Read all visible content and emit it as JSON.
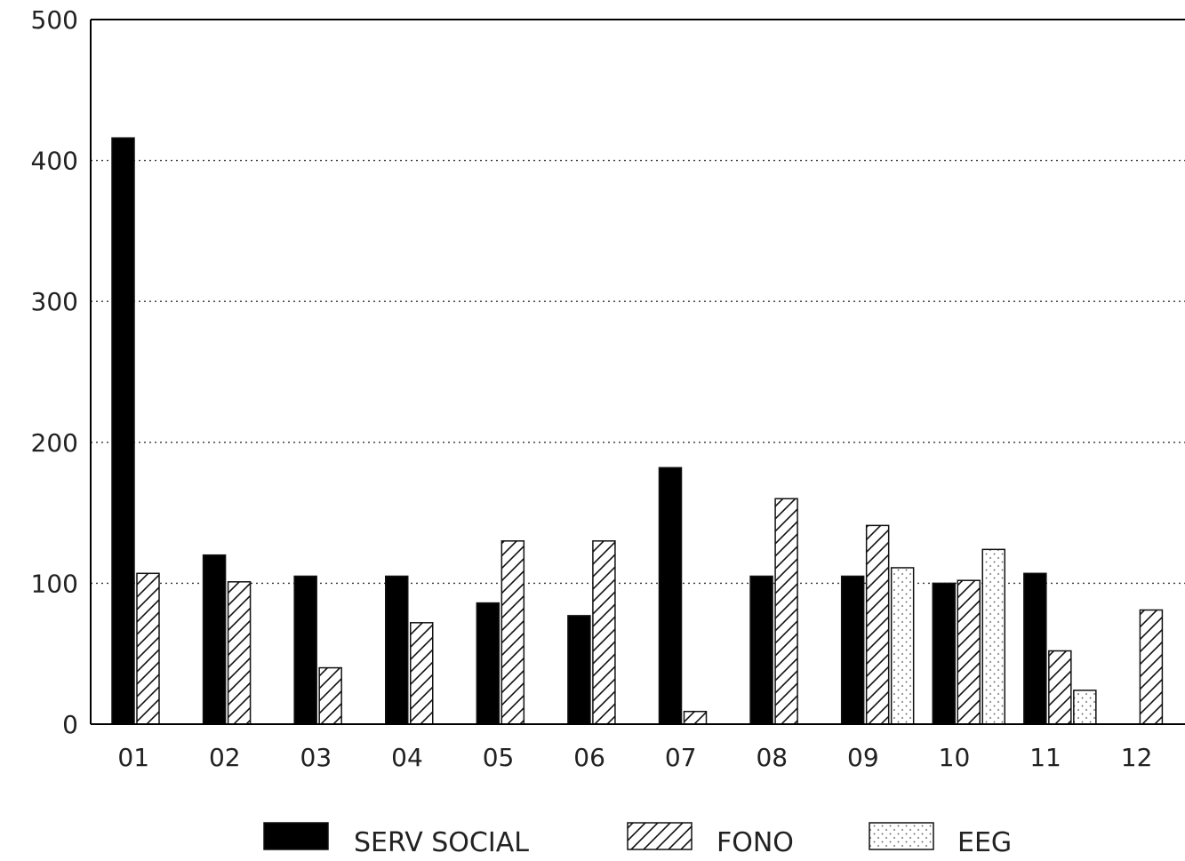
{
  "chart_data": {
    "type": "bar",
    "categories": [
      "01",
      "02",
      "03",
      "04",
      "05",
      "06",
      "07",
      "08",
      "09",
      "10",
      "11",
      "12"
    ],
    "series": [
      {
        "name": "SERV SOCIAL",
        "values": [
          416,
          120,
          105,
          105,
          86,
          77,
          182,
          105,
          105,
          100,
          107,
          0
        ],
        "pattern": "solid"
      },
      {
        "name": "FONO",
        "values": [
          107,
          101,
          40,
          72,
          130,
          130,
          9,
          160,
          141,
          102,
          52,
          81
        ],
        "pattern": "hatch"
      },
      {
        "name": "EEG",
        "values": [
          0,
          0,
          0,
          0,
          0,
          0,
          0,
          0,
          111,
          124,
          24,
          0
        ],
        "pattern": "dots"
      }
    ],
    "y_ticks": [
      "0",
      "100",
      "200",
      "300",
      "400",
      "500"
    ],
    "ylim": [
      0,
      500
    ],
    "grid": true,
    "legend_position": "bottom",
    "colors": {
      "fill": "#000000",
      "stroke": "#111111",
      "background": "#ffffff"
    }
  }
}
